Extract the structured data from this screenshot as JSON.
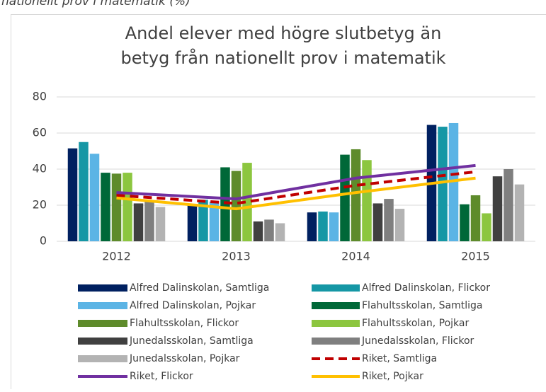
{
  "caption": "nationellt prov i matematik (%)",
  "chart_data": {
    "type": "bar",
    "title": [
      "Andel elever med högre slutbetyg än",
      "betyg från nationellt prov i matematik"
    ],
    "categories": [
      "2012",
      "2013",
      "2014",
      "2015"
    ],
    "ylim": [
      0,
      80
    ],
    "yticks": [
      0,
      20,
      40,
      60,
      80
    ],
    "grid": true,
    "series": [
      {
        "name": "Alfred Dalinskolan, Samtliga",
        "type": "bar",
        "color": "#002060",
        "values": [
          51.5,
          20,
          16,
          64.5
        ]
      },
      {
        "name": "Alfred Dalinskolan, Flickor",
        "type": "bar",
        "color": "#1597a5",
        "values": [
          55,
          23,
          16.5,
          63.5
        ]
      },
      {
        "name": "Alfred Dalinskolan, Pojkar",
        "type": "bar",
        "color": "#5bb4e5",
        "values": [
          48.5,
          22,
          16,
          65.5
        ]
      },
      {
        "name": "Flahultsskolan, Samtliga",
        "type": "bar",
        "color": "#006838",
        "values": [
          38,
          41,
          48,
          20.5
        ]
      },
      {
        "name": "Flahultsskolan, Flickor",
        "type": "bar",
        "color": "#5e8b2b",
        "values": [
          37.5,
          39,
          51,
          25.5
        ]
      },
      {
        "name": "Flahultsskolan, Pojkar",
        "type": "bar",
        "color": "#8cc63f",
        "values": [
          38,
          43.5,
          45,
          15.5
        ]
      },
      {
        "name": "Junedalsskolan, Samtliga",
        "type": "bar",
        "color": "#404040",
        "values": [
          21,
          11,
          21,
          36
        ]
      },
      {
        "name": "Junedalsskolan, Flickor",
        "type": "bar",
        "color": "#7f7f7f",
        "values": [
          22,
          12,
          23.5,
          40
        ]
      },
      {
        "name": "Junedalsskolan, Pojkar",
        "type": "bar",
        "color": "#b3b3b3",
        "values": [
          19,
          10,
          18,
          31.5
        ]
      },
      {
        "name": "Riket, Samtliga",
        "type": "line",
        "dashed": true,
        "color": "#c00000",
        "values": [
          25.5,
          21,
          31,
          38.5
        ]
      },
      {
        "name": "Riket, Flickor",
        "type": "line",
        "color": "#7030a0",
        "values": [
          27,
          23.5,
          35,
          42
        ]
      },
      {
        "name": "Riket, Pojkar",
        "type": "line",
        "color": "#ffc000",
        "values": [
          24,
          18,
          27,
          35
        ]
      }
    ]
  }
}
